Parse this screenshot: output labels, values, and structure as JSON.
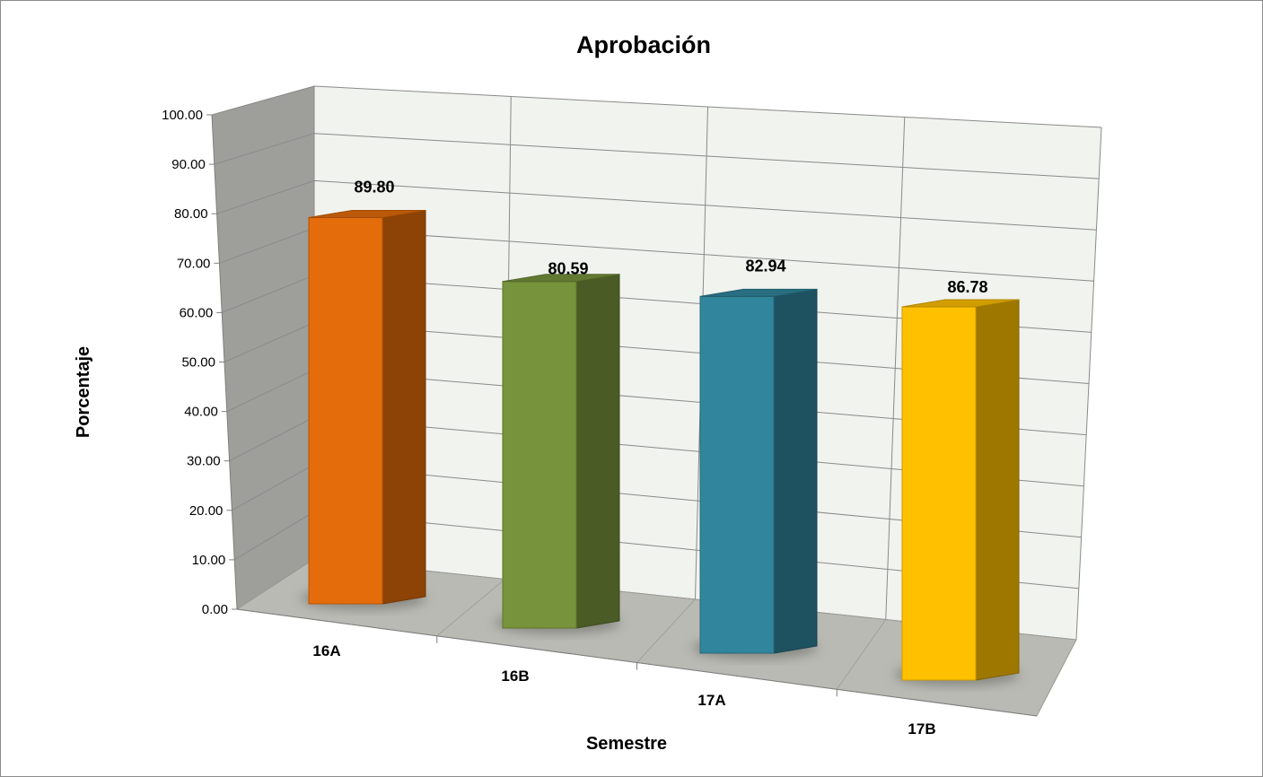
{
  "chart_data": {
    "type": "bar",
    "title": "Aprobación",
    "xlabel": "Semestre",
    "ylabel": "Porcentaje",
    "categories": [
      "16A",
      "16B",
      "17A",
      "17B"
    ],
    "values": [
      89.8,
      80.59,
      82.94,
      86.78
    ],
    "data_labels": [
      "89.80",
      "80.59",
      "82.94",
      "86.78"
    ],
    "colors": [
      "#E46C0A",
      "#77933C",
      "#31859C",
      "#FFC000"
    ],
    "ylim": [
      0,
      100
    ],
    "yticks": [
      "0.00",
      "10.00",
      "20.00",
      "30.00",
      "40.00",
      "50.00",
      "60.00",
      "70.00",
      "80.00",
      "90.00",
      "100.00"
    ],
    "grid": true,
    "legend": "none",
    "style": "3d-column"
  }
}
